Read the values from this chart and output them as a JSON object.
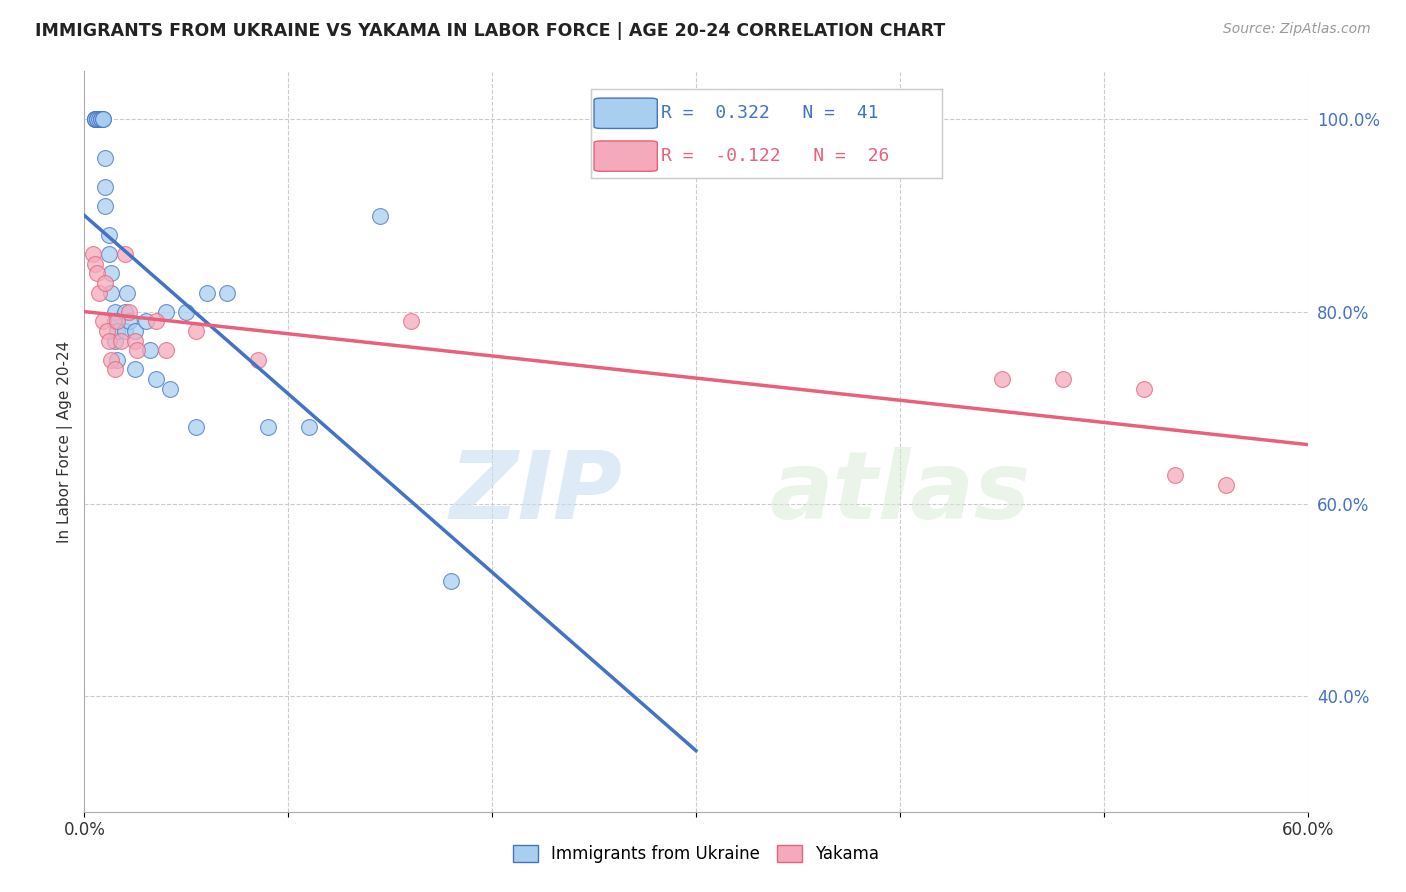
{
  "title": "IMMIGRANTS FROM UKRAINE VS YAKAMA IN LABOR FORCE | AGE 20-24 CORRELATION CHART",
  "source": "Source: ZipAtlas.com",
  "ylabel": "In Labor Force | Age 20-24",
  "xlim": [
    0.0,
    0.6
  ],
  "ylim": [
    0.28,
    1.05
  ],
  "xticks": [
    0.0,
    0.1,
    0.2,
    0.3,
    0.4,
    0.5,
    0.6
  ],
  "xtick_labels": [
    "0.0%",
    "",
    "",
    "",
    "",
    "",
    "60.0%"
  ],
  "ytick_labels_right": [
    "100.0%",
    "80.0%",
    "60.0%",
    "40.0%"
  ],
  "yticks_right": [
    1.0,
    0.8,
    0.6,
    0.4
  ],
  "legend_r_ukraine": "0.322",
  "legend_n_ukraine": "41",
  "legend_r_yakama": "-0.122",
  "legend_n_yakama": "26",
  "ukraine_color": "#A8CFEF",
  "yakama_color": "#F4AABB",
  "ukraine_line_color": "#4472C4",
  "yakama_line_color": "#E8607A",
  "watermark_zip": "ZIP",
  "watermark_atlas": "atlas",
  "ukraine_x": [
    0.005,
    0.005,
    0.005,
    0.006,
    0.006,
    0.007,
    0.008,
    0.008,
    0.009,
    0.009,
    0.01,
    0.01,
    0.01,
    0.012,
    0.012,
    0.013,
    0.013,
    0.015,
    0.015,
    0.015,
    0.016,
    0.016,
    0.02,
    0.02,
    0.021,
    0.022,
    0.025,
    0.025,
    0.03,
    0.032,
    0.035,
    0.04,
    0.042,
    0.05,
    0.055,
    0.06,
    0.07,
    0.09,
    0.11,
    0.145,
    0.18
  ],
  "ukraine_y": [
    1.0,
    1.0,
    1.0,
    1.0,
    1.0,
    1.0,
    1.0,
    1.0,
    1.0,
    1.0,
    0.96,
    0.93,
    0.91,
    0.88,
    0.86,
    0.84,
    0.82,
    0.8,
    0.79,
    0.77,
    0.78,
    0.75,
    0.8,
    0.78,
    0.82,
    0.79,
    0.78,
    0.74,
    0.79,
    0.76,
    0.73,
    0.8,
    0.72,
    0.8,
    0.68,
    0.82,
    0.82,
    0.68,
    0.68,
    0.9,
    0.52
  ],
  "yakama_x": [
    0.004,
    0.005,
    0.006,
    0.007,
    0.009,
    0.01,
    0.011,
    0.012,
    0.013,
    0.015,
    0.016,
    0.018,
    0.02,
    0.022,
    0.025,
    0.026,
    0.035,
    0.04,
    0.055,
    0.085,
    0.16,
    0.45,
    0.48,
    0.52,
    0.535,
    0.56
  ],
  "yakama_y": [
    0.86,
    0.85,
    0.84,
    0.82,
    0.79,
    0.83,
    0.78,
    0.77,
    0.75,
    0.74,
    0.79,
    0.77,
    0.86,
    0.8,
    0.77,
    0.76,
    0.79,
    0.76,
    0.78,
    0.75,
    0.79,
    0.73,
    0.73,
    0.72,
    0.63,
    0.62
  ]
}
